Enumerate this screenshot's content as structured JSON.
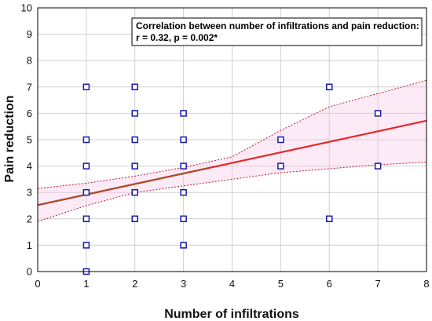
{
  "chart_data": {
    "type": "scatter",
    "title": "",
    "xlabel": "Number of infiltrations",
    "ylabel": "Pain reduction",
    "xlim": [
      0,
      8
    ],
    "ylim": [
      0,
      10
    ],
    "xticks": [
      0,
      1,
      2,
      3,
      4,
      5,
      6,
      7,
      8
    ],
    "yticks": [
      0,
      1,
      2,
      3,
      4,
      5,
      6,
      7,
      8,
      9,
      10
    ],
    "grid": true,
    "points": [
      {
        "x": 1,
        "y": 0
      },
      {
        "x": 1,
        "y": 1
      },
      {
        "x": 1,
        "y": 2
      },
      {
        "x": 1,
        "y": 3
      },
      {
        "x": 1,
        "y": 4
      },
      {
        "x": 1,
        "y": 5
      },
      {
        "x": 1,
        "y": 7
      },
      {
        "x": 2,
        "y": 2
      },
      {
        "x": 2,
        "y": 3
      },
      {
        "x": 2,
        "y": 4
      },
      {
        "x": 2,
        "y": 5
      },
      {
        "x": 2,
        "y": 6
      },
      {
        "x": 2,
        "y": 7
      },
      {
        "x": 3,
        "y": 1
      },
      {
        "x": 3,
        "y": 2
      },
      {
        "x": 3,
        "y": 3
      },
      {
        "x": 3,
        "y": 4
      },
      {
        "x": 3,
        "y": 5
      },
      {
        "x": 3,
        "y": 6
      },
      {
        "x": 5,
        "y": 4
      },
      {
        "x": 5,
        "y": 5
      },
      {
        "x": 6,
        "y": 2
      },
      {
        "x": 6,
        "y": 7
      },
      {
        "x": 7,
        "y": 4
      },
      {
        "x": 7,
        "y": 6
      }
    ],
    "regression": {
      "intercept": 2.52,
      "slope": 0.4
    },
    "confidence_band": {
      "upper": [
        [
          0,
          3.15
        ],
        [
          1,
          3.35
        ],
        [
          2,
          3.62
        ],
        [
          3,
          3.95
        ],
        [
          4,
          4.35
        ],
        [
          5,
          5.35
        ],
        [
          6,
          6.25
        ],
        [
          7,
          6.75
        ],
        [
          8,
          7.25
        ]
      ],
      "lower": [
        [
          0,
          1.9
        ],
        [
          1,
          2.5
        ],
        [
          2,
          3.0
        ],
        [
          3,
          3.25
        ],
        [
          4,
          3.5
        ],
        [
          5,
          3.75
        ],
        [
          6,
          3.9
        ],
        [
          7,
          4.05
        ],
        [
          8,
          4.15
        ]
      ]
    },
    "annotation": {
      "line1": "Correlation between number of infiltrations and pain reduction:",
      "line2": "r = 0.32, p = 0.002*"
    },
    "colors": {
      "points": "#1a1aa8",
      "regression": "#e8262b",
      "regression_overlap": "#a0522d",
      "ci": "#c8102e",
      "ci_fill": "#f7c6e8",
      "grid": "#cfcfcf"
    }
  }
}
